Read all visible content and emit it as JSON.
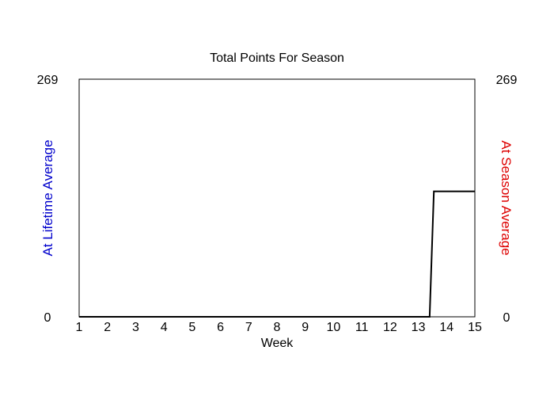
{
  "chart_data": {
    "type": "line",
    "title": "Total Points For Season",
    "xlabel": "Week",
    "ylabel_left": "At Lifetime Average",
    "ylabel_right": "At Season Average",
    "ylabel_left_color": "#0000cc",
    "ylabel_right_color": "#dd0000",
    "line_color": "#000000",
    "xlim": [
      1,
      15
    ],
    "ylim": [
      0,
      269
    ],
    "x_ticks": [
      "1",
      "2",
      "3",
      "4",
      "5",
      "6",
      "7",
      "8",
      "9",
      "10",
      "11",
      "12",
      "13",
      "14",
      "15"
    ],
    "y_ticks_left": [
      "269",
      "0"
    ],
    "y_ticks_right": [
      "269",
      "0"
    ],
    "grid": false,
    "series": [
      {
        "x": [
          1,
          13.4,
          13.55,
          15
        ],
        "y": [
          0,
          0,
          142,
          142
        ]
      }
    ]
  }
}
